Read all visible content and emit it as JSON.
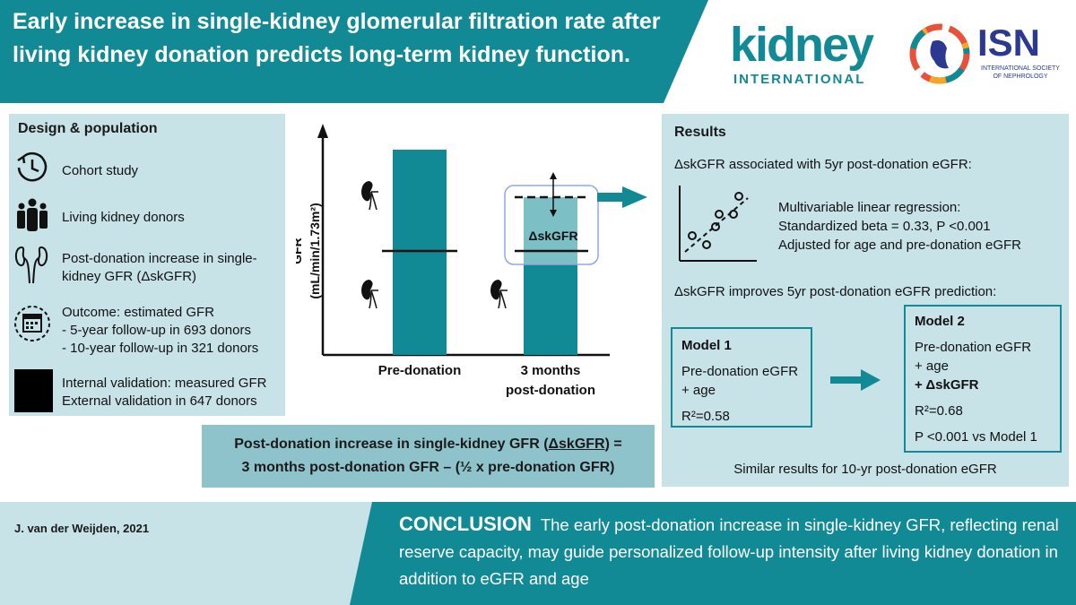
{
  "header": {
    "title": "Early increase in single-kidney glomerular filtration rate after living kidney donation predicts long-term kidney function.",
    "logo_kidney": "kidney",
    "logo_kidney_sub": "INTERNATIONAL",
    "logo_isn": "ISN",
    "logo_isn_sub": "INTERNATIONAL SOCIETY OF NEPHROLOGY"
  },
  "design": {
    "title": "Design & population",
    "items": [
      {
        "icon": "clock-icon",
        "lines": [
          "Cohort study"
        ]
      },
      {
        "icon": "people-icon",
        "lines": [
          "Living kidney donors"
        ]
      },
      {
        "icon": "kidneys-icon",
        "lines": [
          "Post-donation increase in single-",
          "kidney GFR (ΔskGFR)"
        ]
      },
      {
        "icon": "calendar-icon",
        "lines": [
          "Outcome: estimated GFR",
          "- 5-year follow-up in 693 donors",
          "- 10-year follow-up in 321 donors"
        ]
      },
      {
        "icon": "validation-icon",
        "lines": [
          "Internal validation: measured GFR",
          "External validation in 647 donors"
        ]
      }
    ]
  },
  "chart": {
    "ylabel": "GFR",
    "yunit": "(mL/min/1.73m²)",
    "bars": [
      {
        "label": "Pre-donation",
        "label2": ""
      },
      {
        "label": "3 months",
        "label2": "post-donation"
      }
    ],
    "delta_label": "ΔskGFR"
  },
  "formula": {
    "line1_pre": "Post-donation increase in single-kidney GFR (",
    "line1_term": "ΔskGFR",
    "line1_post": ") =",
    "line2": "3 months post-donation GFR – (½ x pre-donation GFR)"
  },
  "results": {
    "title": "Results",
    "assoc_heading": "ΔskGFR associated with 5yr post-donation eGFR:",
    "regression": [
      "Multivariable linear regression:",
      "Standardized beta = 0.33, P <0.001",
      "Adjusted for age and pre-donation eGFR"
    ],
    "improve_heading": "ΔskGFR improves 5yr post-donation eGFR prediction:",
    "model1": {
      "title": "Model 1",
      "lines": [
        "Pre-donation eGFR",
        "+ age"
      ],
      "r2": "R²=0.58"
    },
    "model2": {
      "title": "Model 2",
      "lines": [
        "Pre-donation eGFR",
        "+ age"
      ],
      "bold_line": "+ ΔskGFR",
      "r2": "R²=0.68",
      "p": "P <0.001 vs Model 1"
    },
    "similar": "Similar results for 10-yr post-donation eGFR"
  },
  "footer": {
    "author": "J. van der Weijden, 2021",
    "conclusion_label": "CONCLUSION",
    "conclusion_text": "The early post-donation increase in single-kidney GFR, reflecting renal reserve capacity, may guide personalized follow-up intensity after living kidney donation in addition to eGFR and age"
  },
  "colors": {
    "teal": "#118a96",
    "light": "#c7e3e8",
    "mid": "#8fc3cc",
    "navy": "#2b3990"
  }
}
